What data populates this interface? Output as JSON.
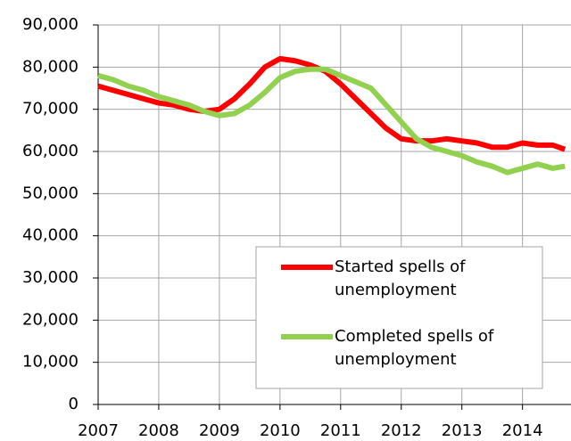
{
  "chart_data": {
    "type": "line",
    "x": [
      2007,
      2007.25,
      2007.5,
      2007.75,
      2008,
      2008.25,
      2008.5,
      2008.75,
      2009,
      2009.25,
      2009.5,
      2009.75,
      2010,
      2010.25,
      2010.5,
      2010.75,
      2011,
      2011.25,
      2011.5,
      2011.75,
      2012,
      2012.25,
      2012.5,
      2012.75,
      2013,
      2013.25,
      2013.5,
      2013.75,
      2014,
      2014.25,
      2014.5,
      2014.7
    ],
    "series": [
      {
        "name": "Started spells of unemployment",
        "color": "#ff0000",
        "values": [
          75500,
          74500,
          73500,
          72500,
          71500,
          71000,
          70000,
          69500,
          70000,
          72500,
          76000,
          80000,
          82000,
          81500,
          80500,
          79000,
          76000,
          72500,
          69000,
          65500,
          63000,
          62500,
          62500,
          63000,
          62500,
          62000,
          61000,
          61000,
          62000,
          61500,
          61500,
          60500
        ]
      },
      {
        "name": "Completed spells of unemployment",
        "color": "#92d050",
        "values": [
          78000,
          77000,
          75500,
          74500,
          73000,
          72000,
          71000,
          69500,
          68500,
          69000,
          71000,
          74000,
          77500,
          79000,
          79500,
          79500,
          78000,
          76500,
          75000,
          71000,
          67000,
          63000,
          61000,
          60000,
          59000,
          57500,
          56500,
          55000,
          56000,
          57000,
          56000,
          56500
        ]
      }
    ],
    "xlim": [
      2007,
      2014.8
    ],
    "xticks": [
      2007,
      2008,
      2009,
      2010,
      2011,
      2012,
      2013,
      2014
    ],
    "ylim": [
      0,
      90000
    ],
    "yticks": [
      0,
      {
        "value": 10000,
        "label": "10,000"
      },
      {
        "value": 20000,
        "label": "20,000"
      },
      {
        "value": 30000,
        "label": "30,000"
      },
      {
        "value": 40000,
        "label": "40,000"
      },
      {
        "value": 50000,
        "label": "50,000"
      },
      {
        "value": 60000,
        "label": "60,000"
      },
      {
        "value": 70000,
        "label": "70,000"
      },
      {
        "value": 80000,
        "label": "80,000"
      },
      {
        "value": 90000,
        "label": "90,000"
      }
    ],
    "grid": true
  }
}
